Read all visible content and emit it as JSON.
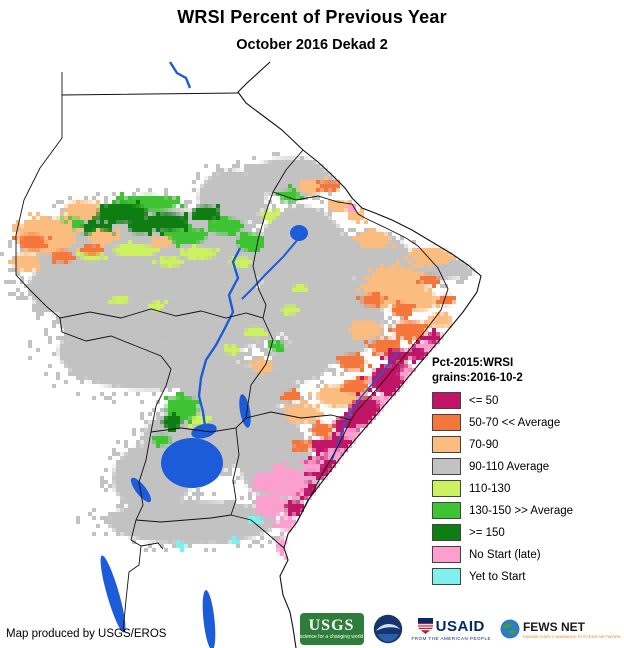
{
  "title": "WRSI Percent of Previous Year",
  "subtitle": "October 2016 Dekad 2",
  "attribution": "Map produced by USGS/EROS",
  "legend": {
    "title_line1": "Pct-2015:WRSI",
    "title_line2": "grains:2016-10-2",
    "items": [
      {
        "key": "magenta",
        "label": "<= 50",
        "color": "#c01467"
      },
      {
        "key": "orange",
        "label": "50-70 << Average",
        "color": "#f5763a"
      },
      {
        "key": "tan",
        "label": "70-90",
        "color": "#fbbc80"
      },
      {
        "key": "gray",
        "label": "90-110 Average",
        "color": "#c2c2c2"
      },
      {
        "key": "lgreen",
        "label": "110-130",
        "color": "#ccf260"
      },
      {
        "key": "mgreen",
        "label": "130-150 >> Average",
        "color": "#3ec432"
      },
      {
        "key": "dgreen",
        "label": ">= 150",
        "color": "#0e7d12"
      },
      {
        "key": "pink",
        "label": "No Start (late)",
        "color": "#fb9fce"
      },
      {
        "key": "cyan",
        "label": "Yet to Start",
        "color": "#80f0ee"
      }
    ]
  },
  "map": {
    "water_color": "#1c5cd8",
    "border_color": "#111111",
    "land_color": "#ffffff",
    "blobs": [
      [
        "gray",
        150,
        262,
        115,
        55
      ],
      [
        "gray",
        195,
        315,
        95,
        38
      ],
      [
        "gray",
        150,
        352,
        92,
        38
      ],
      [
        "gray",
        232,
        198,
        34,
        28
      ],
      [
        "gray",
        292,
        178,
        46,
        20
      ],
      [
        "gray",
        302,
        258,
        46,
        52
      ],
      [
        "gray",
        332,
        318,
        52,
        42
      ],
      [
        "gray",
        372,
        258,
        40,
        24
      ],
      [
        "gray",
        420,
        268,
        40,
        16
      ],
      [
        "gray",
        455,
        268,
        22,
        10
      ],
      [
        "gray",
        120,
        318,
        62,
        30
      ],
      [
        "gray",
        60,
        288,
        32,
        26
      ],
      [
        "gray",
        240,
        388,
        58,
        24
      ],
      [
        "gray",
        200,
        440,
        58,
        34
      ],
      [
        "gray",
        256,
        430,
        44,
        28
      ],
      [
        "gray",
        152,
        478,
        40,
        34
      ],
      [
        "gray",
        278,
        468,
        38,
        32
      ],
      [
        "gray",
        192,
        522,
        85,
        22
      ],
      [
        "gray",
        300,
        362,
        30,
        20
      ],
      [
        "gray",
        260,
        320,
        30,
        20
      ],
      [
        "lgreen",
        135,
        250,
        22,
        6
      ],
      [
        "lgreen",
        200,
        253,
        16,
        6
      ],
      [
        "lgreen",
        92,
        256,
        12,
        5
      ],
      [
        "lgreen",
        240,
        262,
        11,
        5
      ],
      [
        "lgreen",
        170,
        262,
        12,
        5
      ],
      [
        "lgreen",
        255,
        332,
        10,
        5
      ],
      [
        "lgreen",
        290,
        310,
        8,
        5
      ],
      [
        "lgreen",
        232,
        350,
        8,
        4
      ],
      [
        "lgreen",
        120,
        300,
        10,
        4
      ],
      [
        "lgreen",
        156,
        306,
        8,
        4
      ],
      [
        "lgreen",
        200,
        420,
        10,
        6
      ],
      [
        "lgreen",
        270,
        215,
        8,
        5
      ],
      [
        "lgreen",
        300,
        288,
        7,
        4
      ],
      [
        "mgreen",
        148,
        203,
        30,
        8
      ],
      [
        "mgreen",
        186,
        236,
        20,
        8
      ],
      [
        "mgreen",
        226,
        226,
        16,
        8
      ],
      [
        "mgreen",
        70,
        223,
        14,
        7
      ],
      [
        "mgreen",
        250,
        242,
        12,
        9
      ],
      [
        "mgreen",
        290,
        196,
        10,
        6
      ],
      [
        "mgreen",
        182,
        408,
        16,
        12
      ],
      [
        "mgreen",
        276,
        346,
        8,
        5
      ],
      [
        "mgreen",
        162,
        440,
        9,
        5
      ],
      [
        "dgreen",
        120,
        213,
        28,
        10
      ],
      [
        "dgreen",
        166,
        222,
        22,
        9
      ],
      [
        "dgreen",
        96,
        229,
        15,
        7
      ],
      [
        "dgreen",
        206,
        213,
        14,
        7
      ],
      [
        "dgreen",
        52,
        233,
        10,
        6
      ],
      [
        "dgreen",
        172,
        422,
        10,
        7
      ],
      [
        "dgreen",
        140,
        225,
        12,
        8
      ],
      [
        "tan",
        46,
        236,
        30,
        18
      ],
      [
        "tan",
        82,
        210,
        17,
        9
      ],
      [
        "tan",
        26,
        262,
        13,
        9
      ],
      [
        "tan",
        102,
        237,
        14,
        7
      ],
      [
        "tan",
        162,
        242,
        11,
        5
      ],
      [
        "tan",
        312,
        186,
        14,
        7
      ],
      [
        "tan",
        338,
        206,
        11,
        6
      ],
      [
        "tan",
        356,
        216,
        9,
        5
      ],
      [
        "tan",
        396,
        286,
        30,
        20
      ],
      [
        "tan",
        432,
        256,
        20,
        9
      ],
      [
        "tan",
        374,
        240,
        16,
        9
      ],
      [
        "tan",
        418,
        300,
        18,
        11
      ],
      [
        "tan",
        342,
        396,
        26,
        11
      ],
      [
        "tan",
        302,
        414,
        18,
        9
      ],
      [
        "tan",
        366,
        330,
        16,
        9
      ],
      [
        "tan",
        440,
        320,
        12,
        7
      ],
      [
        "tan",
        262,
        366,
        11,
        7
      ],
      [
        "orange",
        32,
        242,
        13,
        8
      ],
      [
        "orange",
        62,
        256,
        11,
        6
      ],
      [
        "orange",
        92,
        250,
        9,
        5
      ],
      [
        "orange",
        330,
        186,
        11,
        5
      ],
      [
        "orange",
        410,
        330,
        16,
        9
      ],
      [
        "orange",
        386,
        346,
        14,
        8
      ],
      [
        "orange",
        352,
        362,
        13,
        8
      ],
      [
        "orange",
        402,
        310,
        11,
        7
      ],
      [
        "orange",
        356,
        386,
        13,
        7
      ],
      [
        "orange",
        322,
        430,
        11,
        7
      ],
      [
        "orange",
        302,
        446,
        9,
        6
      ],
      [
        "orange",
        446,
        300,
        9,
        5
      ],
      [
        "orange",
        372,
        300,
        11,
        6
      ],
      [
        "orange",
        292,
        396,
        9,
        5
      ],
      [
        "orange",
        430,
        280,
        9,
        5
      ],
      [
        "magenta",
        396,
        380,
        26,
        16
      ],
      [
        "magenta",
        370,
        412,
        22,
        15
      ],
      [
        "magenta",
        346,
        446,
        19,
        13
      ],
      [
        "magenta",
        324,
        468,
        17,
        11
      ],
      [
        "magenta",
        306,
        490,
        13,
        9
      ],
      [
        "magenta",
        424,
        352,
        15,
        9
      ],
      [
        "magenta",
        346,
        424,
        12,
        8
      ],
      [
        "magenta",
        296,
        508,
        10,
        7
      ],
      [
        "magenta",
        322,
        446,
        11,
        7
      ],
      [
        "magenta",
        434,
        338,
        9,
        6
      ],
      [
        "magenta",
        398,
        356,
        12,
        7
      ],
      [
        "pink",
        286,
        482,
        21,
        15
      ],
      [
        "pink",
        270,
        506,
        15,
        11
      ],
      [
        "pink",
        288,
        524,
        11,
        7
      ],
      [
        "pink",
        283,
        546,
        7,
        9
      ],
      [
        "pink",
        352,
        434,
        10,
        6
      ],
      [
        "pink",
        386,
        402,
        9,
        6
      ],
      [
        "pink",
        408,
        374,
        9,
        6
      ],
      [
        "pink",
        428,
        346,
        7,
        4
      ],
      [
        "pink",
        334,
        454,
        9,
        6
      ],
      [
        "pink",
        312,
        466,
        9,
        6
      ],
      [
        "pink",
        262,
        482,
        10,
        8
      ],
      [
        "pink",
        352,
        208,
        5,
        4
      ],
      [
        "cyan",
        256,
        520,
        6,
        4
      ],
      [
        "cyan",
        182,
        546,
        5,
        3
      ],
      [
        "cyan",
        234,
        540,
        4,
        3
      ]
    ]
  },
  "logos": {
    "usgs": {
      "name": "USGS",
      "tagline": "science for a changing world"
    },
    "usaid": {
      "name": "USAID",
      "tagline": "FROM THE AMERICAN PEOPLE"
    },
    "fewsnet": {
      "name": "FEWS NET",
      "tagline": "FAMINE EARLY WARNING SYSTEMS NETWORK"
    }
  }
}
